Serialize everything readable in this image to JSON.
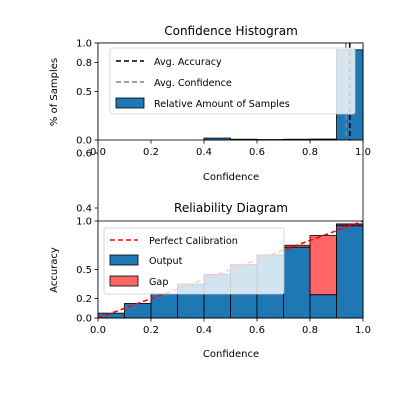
{
  "chart_data": [
    {
      "type": "bar",
      "title": "Confidence Histogram",
      "xlabel": "Confidence",
      "ylabel": "% of Samples",
      "xlim": [
        0,
        1
      ],
      "ylim": [
        0,
        1
      ],
      "x_ticks": [
        "0.0",
        "0.2",
        "0.4",
        "0.6",
        "0.8",
        "1.0"
      ],
      "y_ticks": [
        {
          "value": 0.0,
          "label": "0.0"
        },
        {
          "value": 0.5,
          "label": "0.5"
        },
        {
          "value": 0.8,
          "label": "0.8"
        },
        {
          "value": 1.0,
          "label": "1.0"
        }
      ],
      "bin_edges": [
        0.0,
        0.1,
        0.2,
        0.3,
        0.4,
        0.5,
        0.6,
        0.7,
        0.8,
        0.9,
        1.0
      ],
      "series": [
        {
          "name": "Relative Amount of Samples",
          "color": "#1f77b4",
          "values": [
            0,
            0,
            0,
            0,
            0.02,
            0.008,
            0.005,
            0.008,
            0.01,
            0.93
          ]
        }
      ],
      "reference_lines": [
        {
          "name": "Avg. Accuracy",
          "x": 0.95,
          "color": "#000000",
          "style": "dashed"
        },
        {
          "name": "Avg. Confidence",
          "x": 0.935,
          "color": "#808080",
          "style": "dashed"
        }
      ],
      "legend": {
        "placement": "upper-right",
        "entries": [
          "Avg. Accuracy",
          "Avg. Confidence",
          "Relative Amount of Samples"
        ]
      },
      "grid": false
    },
    {
      "type": "bar",
      "title": "Reliability Diagram",
      "xlabel": "Confidence",
      "ylabel": "Accuracy",
      "xlim": [
        0,
        1
      ],
      "ylim": [
        0,
        1
      ],
      "x_ticks": [
        "0.0",
        "0.2",
        "0.4",
        "0.6",
        "0.8",
        "1.0"
      ],
      "y_ticks": [
        {
          "value": 0.0,
          "label": "0.0"
        },
        {
          "value": 0.2,
          "label": "0.2"
        },
        {
          "value": 0.5,
          "label": "0.5"
        },
        {
          "value": 1.0,
          "label": "1.0"
        }
      ],
      "bin_edges": [
        0.0,
        0.1,
        0.2,
        0.3,
        0.4,
        0.5,
        0.6,
        0.7,
        0.8,
        0.9,
        1.0
      ],
      "series": [
        {
          "name": "Output",
          "color": "#1f77b4",
          "values": [
            0.05,
            0.15,
            0.25,
            0.35,
            0.45,
            0.55,
            0.65,
            0.73,
            0.24,
            0.97
          ]
        },
        {
          "name": "Gap",
          "color": "#ff0000",
          "values": [
            0.05,
            0.15,
            0.25,
            0.35,
            0.45,
            0.55,
            0.65,
            0.75,
            0.85,
            0.95
          ]
        }
      ],
      "reference_lines": [
        {
          "name": "Perfect Calibration",
          "from": [
            0,
            0
          ],
          "to": [
            1,
            1
          ],
          "color": "#ff0000",
          "style": "dashed"
        }
      ],
      "legend": {
        "placement": "upper-left",
        "entries": [
          "Perfect Calibration",
          "Output",
          "Gap"
        ]
      },
      "grid": false
    }
  ],
  "overlay_ticks": {
    "y_labels": [
      {
        "value": 0.6,
        "label": "0.6"
      },
      {
        "value": 0.4,
        "label": "0.4"
      }
    ]
  }
}
